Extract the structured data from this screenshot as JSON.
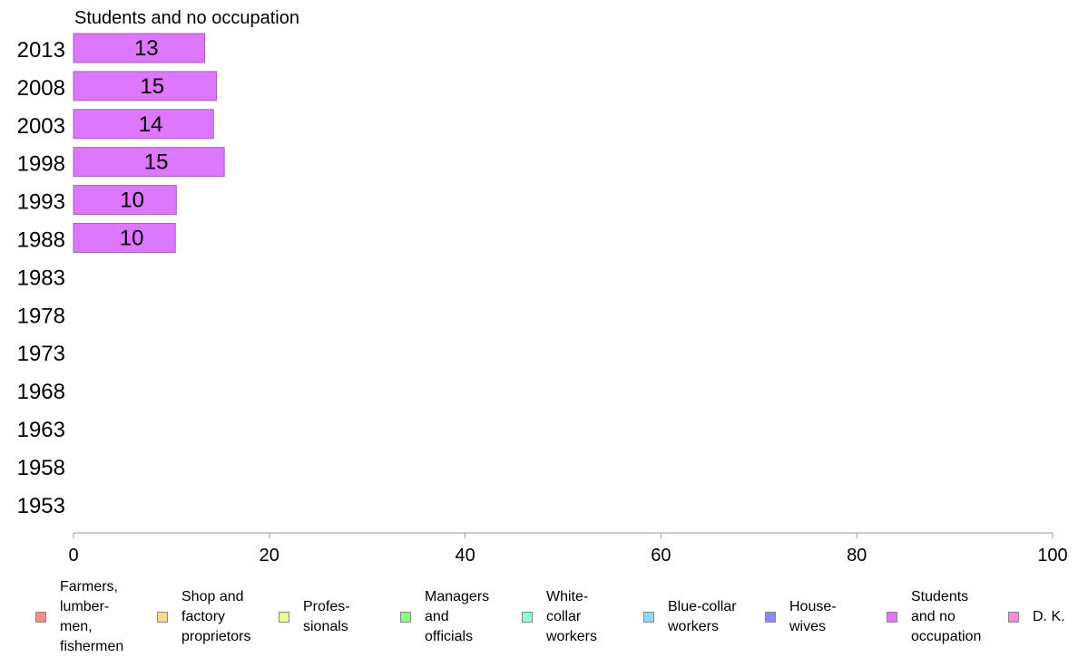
{
  "chart_data": {
    "type": "bar",
    "orientation": "horizontal",
    "title": "Students and no occupation",
    "categories": [
      "2013",
      "2008",
      "2003",
      "1998",
      "1993",
      "1988",
      "1983",
      "1978",
      "1973",
      "1968",
      "1963",
      "1958",
      "1953"
    ],
    "values": [
      13.4,
      14.6,
      14.3,
      15.4,
      10.5,
      10.4,
      null,
      null,
      null,
      null,
      null,
      null,
      null
    ],
    "data_labels": [
      "13",
      "15",
      "14",
      "15",
      "10",
      "10",
      "",
      "",
      "",
      "",
      "",
      "",
      ""
    ],
    "xlim": [
      0,
      100
    ],
    "x_ticks": [
      "0",
      "20",
      "40",
      "60",
      "80",
      "100"
    ],
    "grid": false,
    "legend_position": "bottom",
    "bar_color": "#dd77ff",
    "legend": [
      {
        "label": "Farmers,\nlumber-\nmen,\nfishermen",
        "color": "#ff8a8a"
      },
      {
        "label": "Shop and\nfactory\nproprietors",
        "color": "#ffd88a"
      },
      {
        "label": "Profes-\nsionals",
        "color": "#eaff8a"
      },
      {
        "label": "Managers\nand\nofficials",
        "color": "#8aff8a"
      },
      {
        "label": "White-\ncollar\nworkers",
        "color": "#8affdd"
      },
      {
        "label": "Blue-collar\nworkers",
        "color": "#8adcff"
      },
      {
        "label": "House-\nwives",
        "color": "#8a8aff"
      },
      {
        "label": "Students\nand no\noccupation",
        "color": "#dd77ff"
      },
      {
        "label": "D. K.",
        "color": "#ff88dd"
      }
    ]
  }
}
